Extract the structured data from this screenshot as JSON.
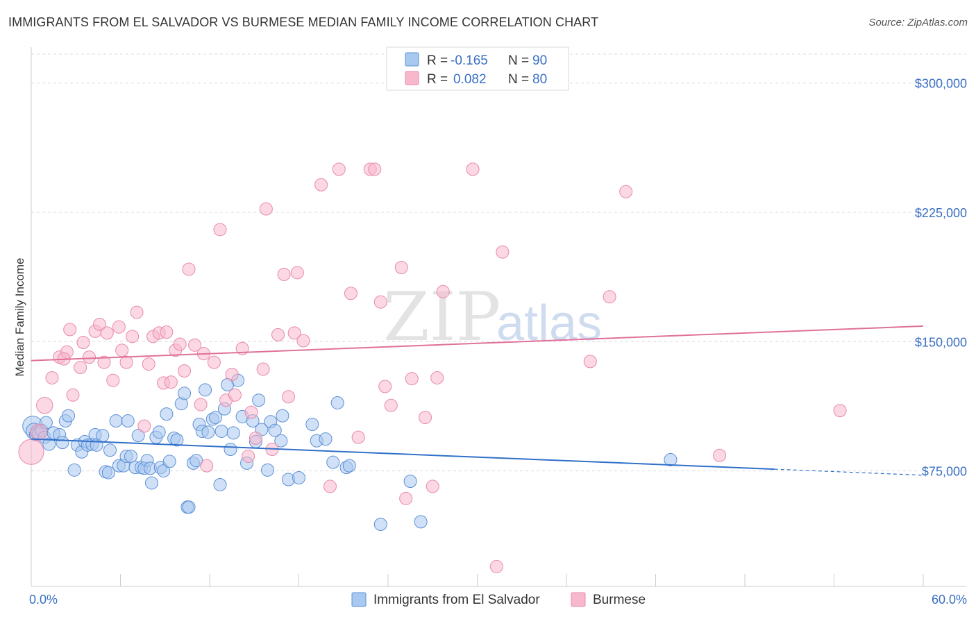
{
  "header": {
    "title": "IMMIGRANTS FROM EL SALVADOR VS BURMESE MEDIAN FAMILY INCOME CORRELATION CHART",
    "source": "Source: ZipAtlas.com"
  },
  "watermark": {
    "zip": "ZIP",
    "atlas": "atlas"
  },
  "legend_top": {
    "rows": [
      {
        "r_label": "R =",
        "r_value": "-0.165",
        "n_label": "N =",
        "n_value": "90",
        "color": "#a9c8f0"
      },
      {
        "r_label": "R =",
        "r_value": "0.082",
        "n_label": "N =",
        "n_value": "80",
        "color": "#f7b8cc"
      }
    ]
  },
  "legend_bottom": [
    {
      "label": "Immigrants from El Salvador",
      "color": "#a9c8f0"
    },
    {
      "label": "Burmese",
      "color": "#f7b8cc"
    }
  ],
  "chart_data": {
    "type": "scatter",
    "ylabel": "Median Family Income",
    "xlim": [
      0,
      60
    ],
    "ylim": [
      8000,
      318000
    ],
    "x_tick_labels": [
      "0.0%",
      "60.0%"
    ],
    "y_ticks": [
      {
        "value": 75000,
        "label": "$75,000"
      },
      {
        "value": 150000,
        "label": "$150,000"
      },
      {
        "value": 225000,
        "label": "$225,000"
      },
      {
        "value": 300000,
        "label": "$300,000"
      }
    ],
    "grid": true,
    "colors": {
      "blue_fill": "#a9c8f0",
      "blue_stroke": "#5b8fd6",
      "blue_line": "#3070c9",
      "pink_fill": "#f7b8cc",
      "pink_stroke": "#e889a8",
      "pink_line": "#e0709a"
    },
    "series": [
      {
        "name": "Immigrants from El Salvador",
        "trend": {
          "x0": 0,
          "y0": 93500,
          "x1": 50,
          "y1": 76000,
          "dash_to_x": 60,
          "dash_to_y": 72500
        },
        "points": [
          [
            0.1,
            101000,
            1.6
          ],
          [
            0.2,
            98000,
            1.3
          ],
          [
            0.3,
            96000,
            1.0
          ],
          [
            0.4,
            97500,
            1.0
          ],
          [
            0.5,
            96500,
            1.0
          ],
          [
            0.7,
            98500,
            1.0
          ],
          [
            0.9,
            94500,
            1.0
          ],
          [
            1.0,
            103000,
            1.0
          ],
          [
            1.2,
            90500,
            1.0
          ],
          [
            1.5,
            97000,
            1.0
          ],
          [
            1.9,
            96000,
            1.0
          ],
          [
            2.1,
            91500,
            1.0
          ],
          [
            2.3,
            104000,
            1.0
          ],
          [
            2.5,
            107000,
            1.0
          ],
          [
            2.9,
            75500,
            1.0
          ],
          [
            3.1,
            90000,
            1.0
          ],
          [
            3.4,
            86000,
            1.0
          ],
          [
            3.6,
            92000,
            1.0
          ],
          [
            3.8,
            90000,
            1.0
          ],
          [
            4.1,
            90500,
            1.0
          ],
          [
            4.3,
            96000,
            1.0
          ],
          [
            4.4,
            90000,
            1.0
          ],
          [
            4.8,
            95500,
            1.0
          ],
          [
            5.0,
            74500,
            1.0
          ],
          [
            5.2,
            74000,
            1.0
          ],
          [
            5.3,
            87000,
            1.0
          ],
          [
            5.7,
            104000,
            1.0
          ],
          [
            5.9,
            78000,
            1.0
          ],
          [
            6.2,
            78000,
            1.0
          ],
          [
            6.4,
            83500,
            1.0
          ],
          [
            6.5,
            104000,
            1.0
          ],
          [
            6.7,
            83500,
            1.0
          ],
          [
            7.0,
            77000,
            1.0
          ],
          [
            7.2,
            95500,
            1.0
          ],
          [
            7.4,
            77000,
            1.0
          ],
          [
            7.6,
            76500,
            1.0
          ],
          [
            7.8,
            81000,
            1.0
          ],
          [
            8.0,
            76500,
            1.0
          ],
          [
            8.1,
            68000,
            1.0
          ],
          [
            8.4,
            94500,
            1.0
          ],
          [
            8.6,
            97500,
            1.0
          ],
          [
            8.7,
            77000,
            1.0
          ],
          [
            8.9,
            75000,
            1.0
          ],
          [
            9.1,
            108000,
            1.0
          ],
          [
            9.3,
            80500,
            1.0
          ],
          [
            9.6,
            94000,
            1.0
          ],
          [
            9.8,
            93000,
            1.0
          ],
          [
            10.1,
            114000,
            1.0
          ],
          [
            10.3,
            120000,
            1.0
          ],
          [
            10.5,
            54000,
            1.0
          ],
          [
            10.9,
            79500,
            1.0
          ],
          [
            11.1,
            81000,
            1.0
          ],
          [
            11.3,
            102000,
            1.0
          ],
          [
            11.5,
            98000,
            1.0
          ],
          [
            11.7,
            122000,
            1.0
          ],
          [
            11.9,
            97500,
            1.0
          ],
          [
            12.2,
            105000,
            1.0
          ],
          [
            12.4,
            106000,
            1.0
          ],
          [
            12.7,
            67000,
            1.0
          ],
          [
            12.8,
            98000,
            1.0
          ],
          [
            13.0,
            111000,
            1.0
          ],
          [
            13.2,
            125000,
            1.0
          ],
          [
            13.4,
            87500,
            1.0
          ],
          [
            13.6,
            97000,
            1.0
          ],
          [
            13.9,
            127500,
            1.0
          ],
          [
            14.2,
            106500,
            1.0
          ],
          [
            14.5,
            79500,
            1.0
          ],
          [
            14.9,
            104000,
            1.0
          ],
          [
            15.1,
            92000,
            1.0
          ],
          [
            15.5,
            99000,
            1.0
          ],
          [
            15.9,
            75500,
            1.0
          ],
          [
            16.1,
            103500,
            1.0
          ],
          [
            16.4,
            98500,
            1.0
          ],
          [
            16.8,
            92500,
            1.0
          ],
          [
            16.9,
            107000,
            1.0
          ],
          [
            17.3,
            70000,
            1.0
          ],
          [
            18.0,
            71000,
            1.0
          ],
          [
            18.9,
            102000,
            1.0
          ],
          [
            19.2,
            92500,
            1.0
          ],
          [
            19.8,
            93500,
            1.0
          ],
          [
            20.3,
            80000,
            1.0
          ],
          [
            20.6,
            114500,
            1.0
          ],
          [
            21.2,
            77000,
            1.0
          ],
          [
            21.4,
            78000,
            1.0
          ],
          [
            23.5,
            44000,
            1.0
          ],
          [
            25.5,
            69000,
            1.0
          ],
          [
            26.2,
            45500,
            1.0
          ],
          [
            43.0,
            81500,
            1.0
          ],
          [
            10.6,
            54000,
            1.0
          ],
          [
            15.3,
            116000,
            1.0
          ]
        ]
      },
      {
        "name": "Burmese",
        "trend": {
          "x0": 0,
          "y0": 139000,
          "x1": 60,
          "y1": 159000
        },
        "points": [
          [
            0.0,
            86000,
            2.0
          ],
          [
            0.5,
            97500,
            1.3
          ],
          [
            0.9,
            113000,
            1.3
          ],
          [
            1.4,
            129000,
            1.0
          ],
          [
            1.9,
            141000,
            1.0
          ],
          [
            2.4,
            144000,
            1.0
          ],
          [
            2.6,
            157000,
            1.0
          ],
          [
            2.8,
            119000,
            1.0
          ],
          [
            3.3,
            135000,
            1.0
          ],
          [
            3.5,
            149500,
            1.0
          ],
          [
            3.9,
            141000,
            1.0
          ],
          [
            4.3,
            156000,
            1.0
          ],
          [
            4.6,
            160000,
            1.0
          ],
          [
            4.9,
            138000,
            1.0
          ],
          [
            5.1,
            155000,
            1.0
          ],
          [
            5.5,
            127500,
            1.0
          ],
          [
            5.9,
            158500,
            1.0
          ],
          [
            6.1,
            145000,
            1.0
          ],
          [
            6.4,
            138000,
            1.0
          ],
          [
            6.8,
            153000,
            1.0
          ],
          [
            7.1,
            167000,
            1.0
          ],
          [
            7.6,
            101000,
            1.0
          ],
          [
            7.9,
            137000,
            1.0
          ],
          [
            8.2,
            153000,
            1.0
          ],
          [
            8.6,
            155000,
            1.0
          ],
          [
            8.9,
            126000,
            1.0
          ],
          [
            9.1,
            155500,
            1.0
          ],
          [
            9.4,
            126500,
            1.0
          ],
          [
            9.7,
            145000,
            1.0
          ],
          [
            10.0,
            148500,
            1.0
          ],
          [
            10.3,
            133000,
            1.0
          ],
          [
            10.6,
            192000,
            1.0
          ],
          [
            11.0,
            148000,
            1.0
          ],
          [
            11.4,
            113500,
            1.0
          ],
          [
            11.6,
            143000,
            1.0
          ],
          [
            11.8,
            78000,
            1.0
          ],
          [
            12.3,
            138000,
            1.0
          ],
          [
            12.7,
            215000,
            1.0
          ],
          [
            13.1,
            116000,
            1.0
          ],
          [
            13.5,
            131000,
            1.0
          ],
          [
            13.7,
            119000,
            1.0
          ],
          [
            14.2,
            146000,
            1.0
          ],
          [
            14.6,
            83500,
            1.0
          ],
          [
            14.8,
            109000,
            1.0
          ],
          [
            15.1,
            94000,
            1.0
          ],
          [
            15.6,
            134000,
            1.0
          ],
          [
            15.8,
            227000,
            1.0
          ],
          [
            16.2,
            87500,
            1.0
          ],
          [
            16.6,
            154000,
            1.0
          ],
          [
            17.0,
            189000,
            1.0
          ],
          [
            17.3,
            118000,
            1.0
          ],
          [
            17.7,
            155000,
            1.0
          ],
          [
            17.9,
            190000,
            1.0
          ],
          [
            18.3,
            150500,
            1.0
          ],
          [
            19.5,
            241000,
            1.0
          ],
          [
            20.1,
            66000,
            1.0
          ],
          [
            20.7,
            250000,
            1.0
          ],
          [
            21.5,
            178000,
            1.0
          ],
          [
            22.0,
            94500,
            1.0
          ],
          [
            22.8,
            250000,
            1.0
          ],
          [
            23.1,
            250000,
            1.0
          ],
          [
            23.5,
            173000,
            1.0
          ],
          [
            23.8,
            124000,
            1.0
          ],
          [
            24.2,
            113000,
            1.0
          ],
          [
            24.9,
            193000,
            1.0
          ],
          [
            25.2,
            59000,
            1.0
          ],
          [
            25.6,
            128500,
            1.0
          ],
          [
            26.5,
            106000,
            1.0
          ],
          [
            27.0,
            66000,
            1.0
          ],
          [
            27.3,
            129000,
            1.0
          ],
          [
            27.7,
            179000,
            1.0
          ],
          [
            29.7,
            250000,
            1.0
          ],
          [
            31.3,
            19500,
            1.0
          ],
          [
            31.7,
            202000,
            1.0
          ],
          [
            37.6,
            138500,
            1.0
          ],
          [
            38.9,
            176000,
            1.0
          ],
          [
            40.0,
            237000,
            1.0
          ],
          [
            46.3,
            84000,
            1.0
          ],
          [
            54.4,
            110000,
            1.0
          ],
          [
            2.2,
            140000,
            1.0
          ]
        ]
      }
    ]
  }
}
